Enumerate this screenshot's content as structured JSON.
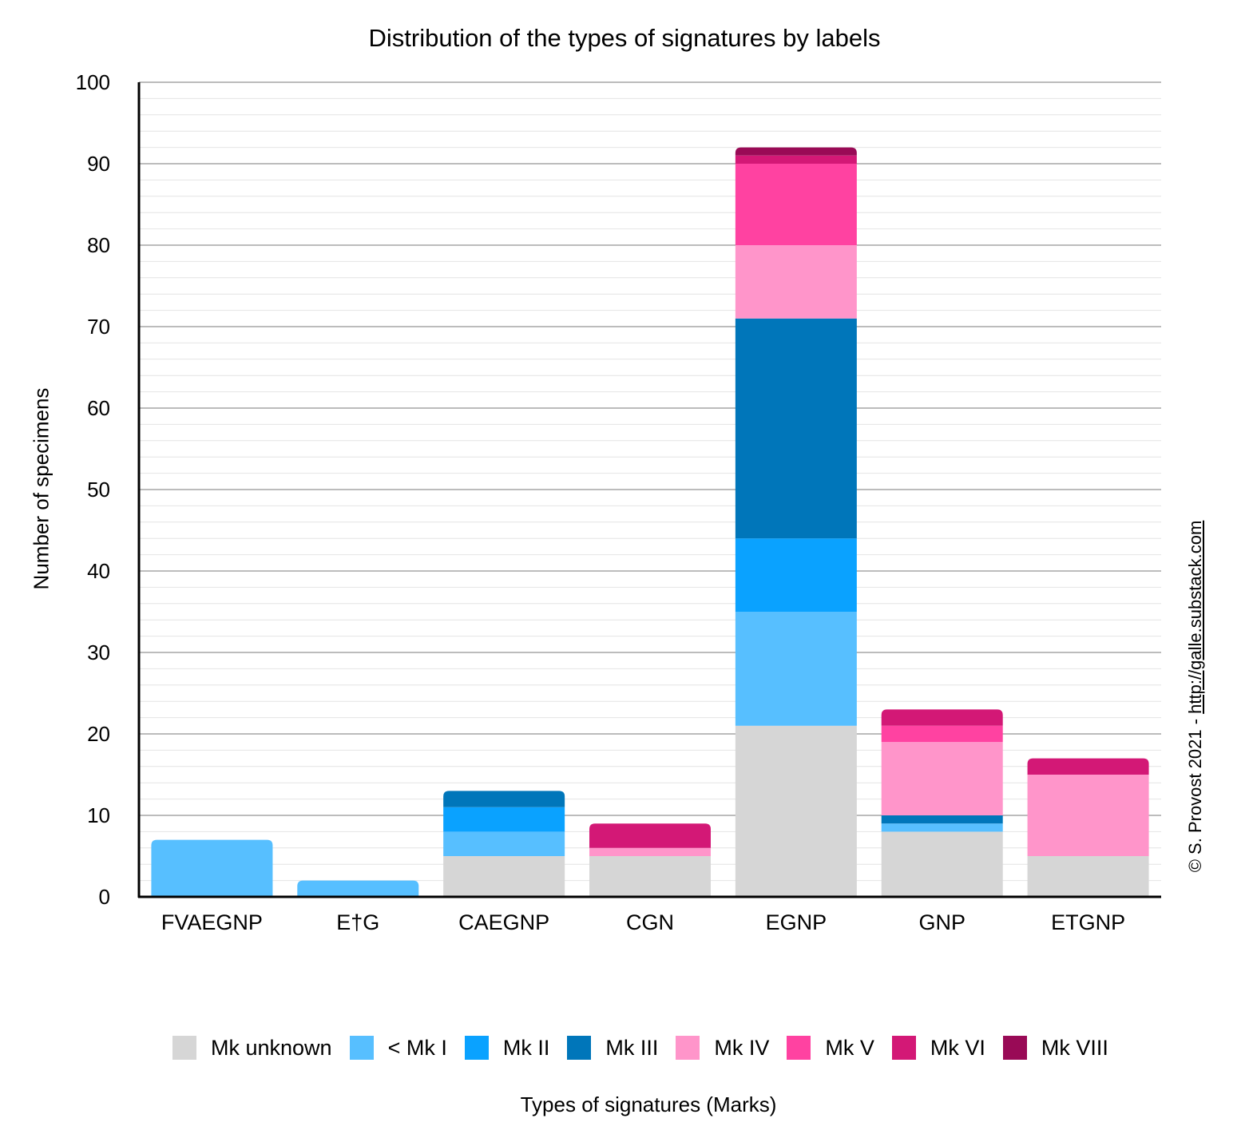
{
  "chart_data": {
    "type": "bar",
    "stacked": true,
    "title": "Distribution of the types of signatures by labels",
    "xlabel": "Types of signatures (Marks)",
    "ylabel": "Number of specimens",
    "ylim": [
      0,
      100
    ],
    "yticks": [
      0,
      10,
      20,
      30,
      40,
      50,
      60,
      70,
      80,
      90,
      100
    ],
    "grid": true,
    "legend_position": "bottom",
    "categories": [
      "FVAEGNP",
      "E†G",
      "CAEGNP",
      "CGN",
      "EGNP",
      "GNP",
      "ETGNP"
    ],
    "series": [
      {
        "name": "Mk unknown",
        "color": "#d6d6d6",
        "values": [
          0,
          0,
          5,
          5,
          21,
          8,
          5
        ]
      },
      {
        "name": "< Mk I",
        "color": "#57bfff",
        "values": [
          7,
          2,
          3,
          0,
          14,
          1,
          0
        ]
      },
      {
        "name": "Mk II",
        "color": "#0aa2ff",
        "values": [
          0,
          0,
          3,
          0,
          9,
          0,
          0
        ]
      },
      {
        "name": "Mk III",
        "color": "#0076ba",
        "values": [
          0,
          0,
          2,
          0,
          27,
          1,
          0
        ]
      },
      {
        "name": "Mk IV",
        "color": "#ff95ca",
        "values": [
          0,
          0,
          0,
          1,
          9,
          9,
          10
        ]
      },
      {
        "name": "Mk V",
        "color": "#ff42a1",
        "values": [
          0,
          0,
          0,
          0,
          10,
          2,
          0
        ]
      },
      {
        "name": "Mk VI",
        "color": "#d31876",
        "values": [
          0,
          0,
          0,
          3,
          1,
          2,
          2
        ]
      },
      {
        "name": "Mk VIII",
        "color": "#990a56",
        "values": [
          0,
          0,
          0,
          0,
          1,
          0,
          0
        ]
      }
    ]
  },
  "credit": {
    "prefix": "© S. Provost 2021 - ",
    "link": "http://galle.substack.com"
  }
}
